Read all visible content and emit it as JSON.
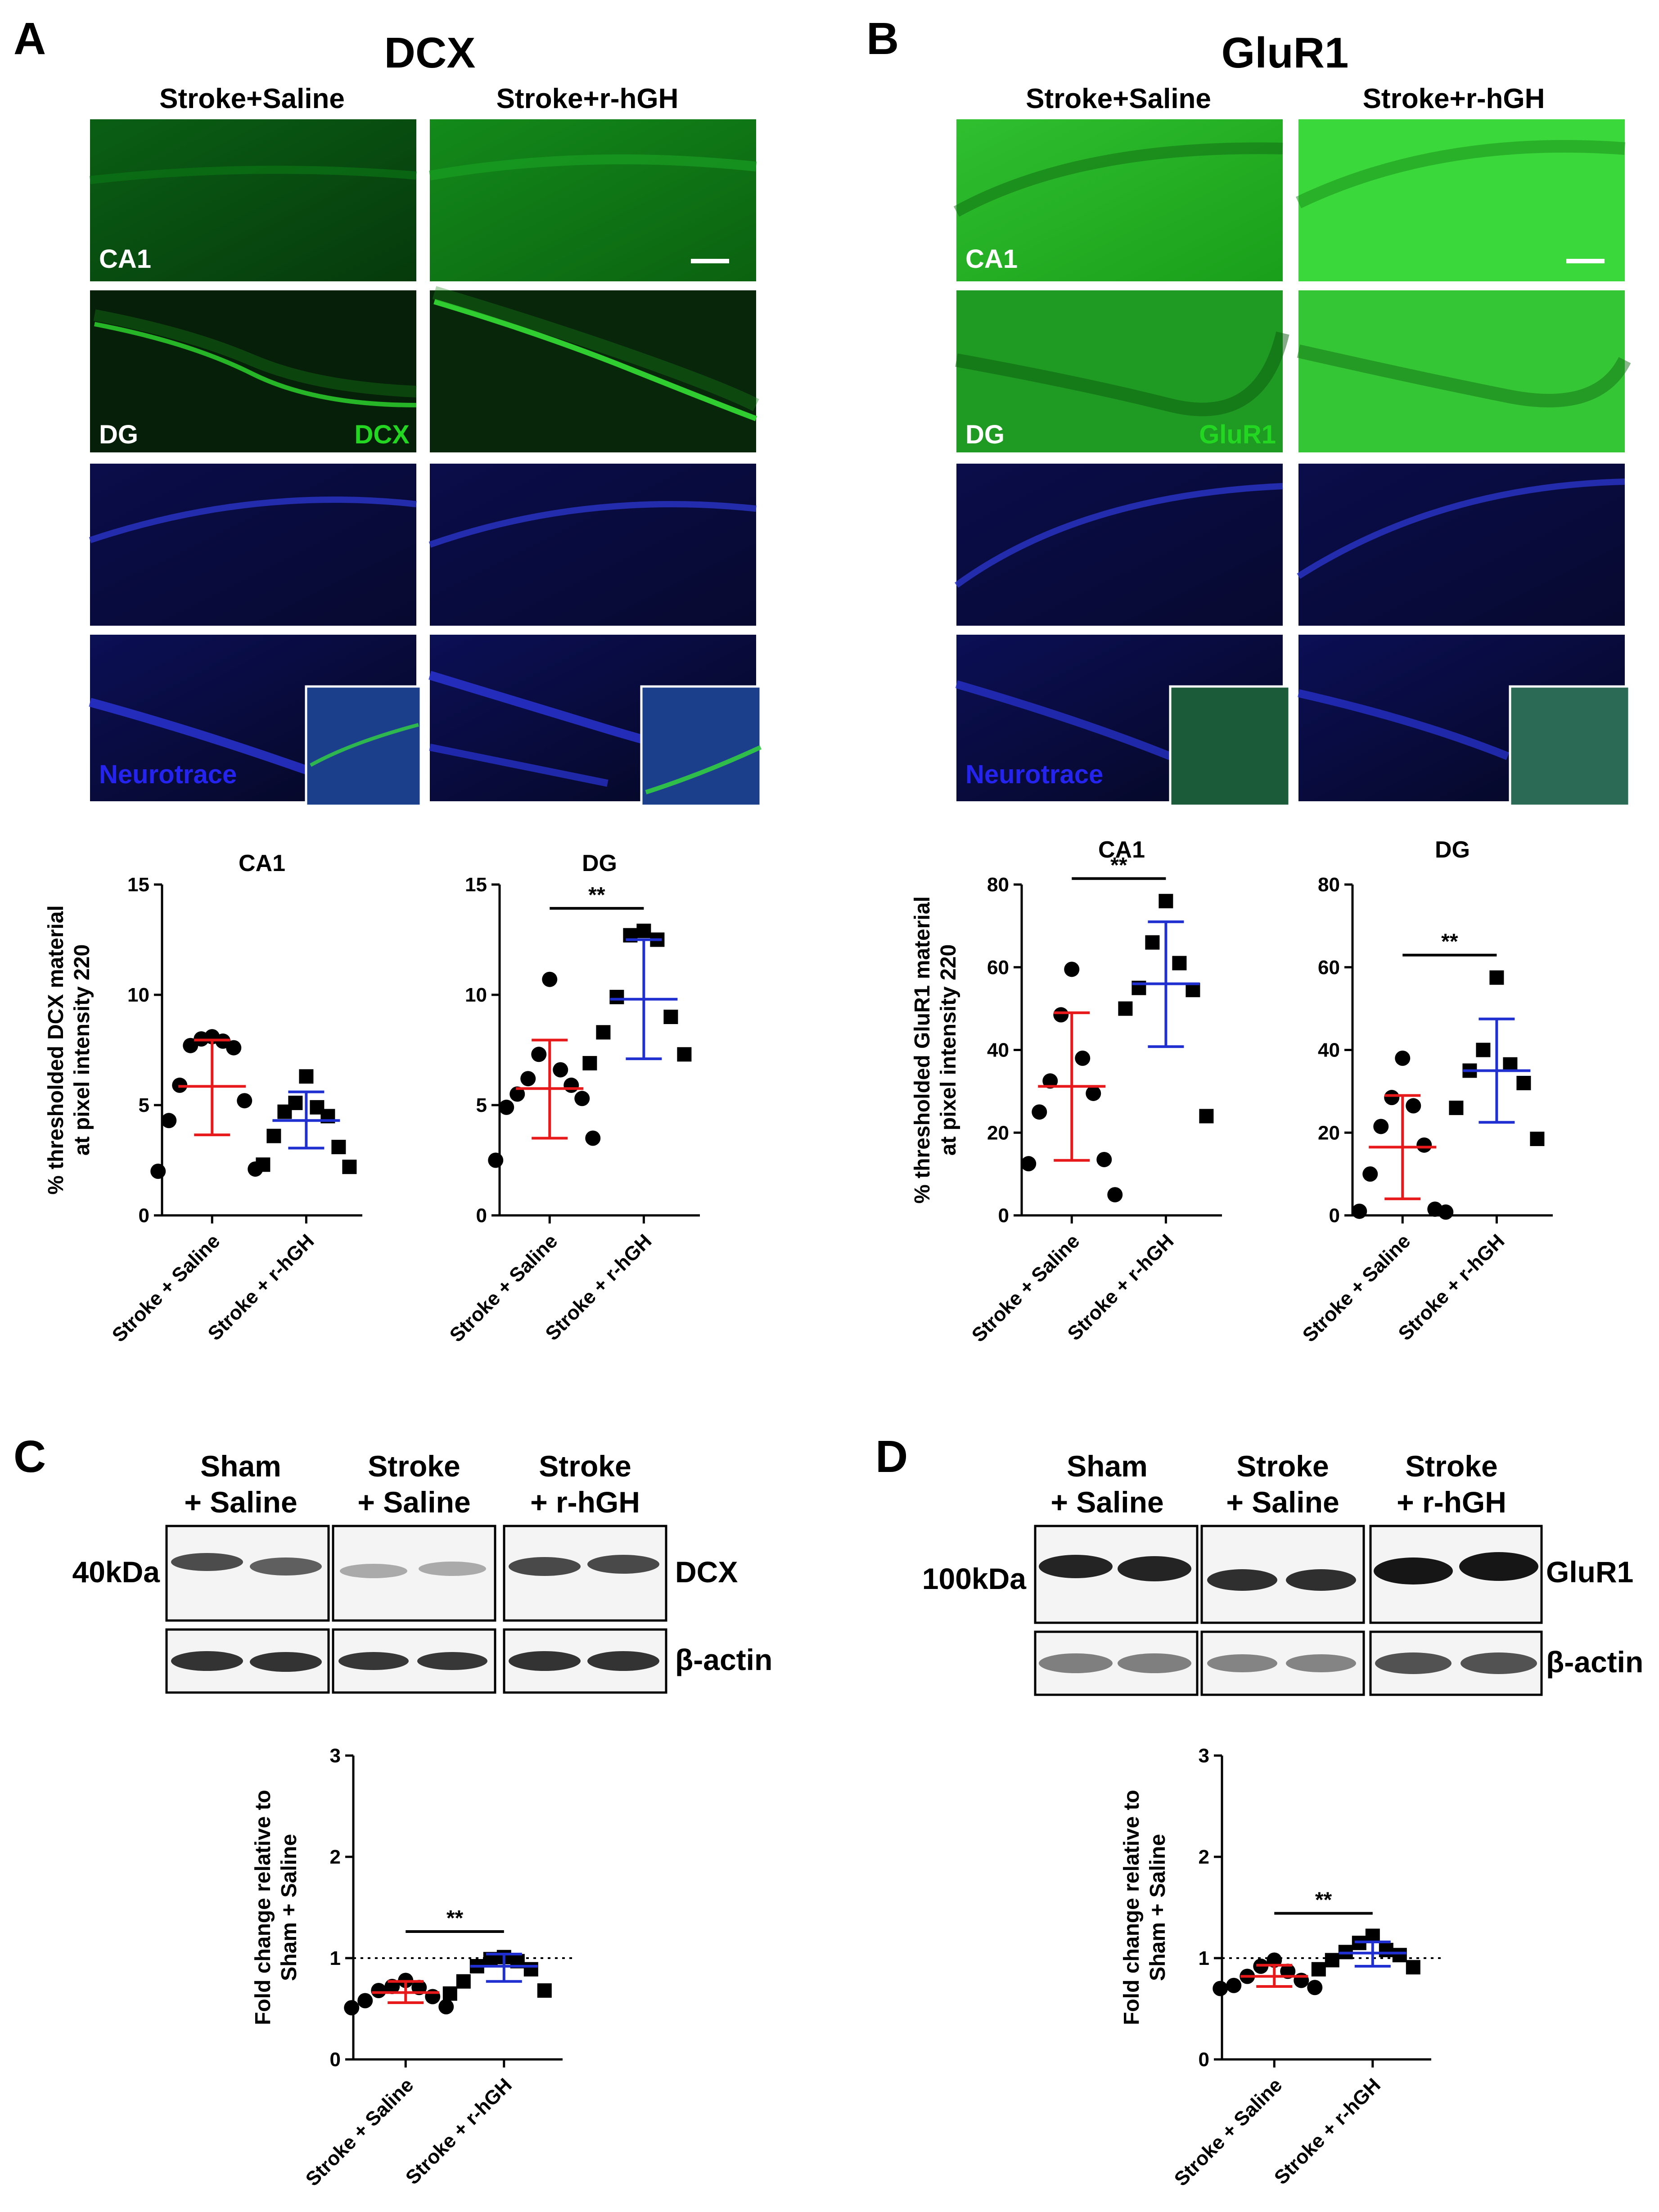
{
  "panels": {
    "A": {
      "letter": "A",
      "title": "DCX",
      "col_labels": [
        "Stroke+Saline",
        "Stroke+r-hGH"
      ],
      "row_labels": {
        "ca1": "CA1",
        "dg": "DG",
        "marker": "DCX",
        "nt": "Neurotrace"
      }
    },
    "B": {
      "letter": "B",
      "title": "GluR1",
      "col_labels": [
        "Stroke+Saline",
        "Stroke+r-hGH"
      ],
      "row_labels": {
        "ca1": "CA1",
        "dg": "DG",
        "marker": "GluR1",
        "nt": "Neurotrace"
      }
    },
    "C": {
      "letter": "C",
      "groups": [
        {
          "line1": "Sham",
          "line2": "+ Saline"
        },
        {
          "line1": "Stroke",
          "line2": "+ Saline"
        },
        {
          "line1": "Stroke",
          "line2": "+ r-hGH"
        }
      ],
      "mw": "40kDa",
      "band1": "DCX",
      "band2": "β-actin"
    },
    "D": {
      "letter": "D",
      "groups": [
        {
          "line1": "Sham",
          "line2": "+ Saline"
        },
        {
          "line1": "Stroke",
          "line2": "+ Saline"
        },
        {
          "line1": "Stroke",
          "line2": "+ r-hGH"
        }
      ],
      "mw": "100kDa",
      "band1": "GluR1",
      "band2": "β-actin"
    }
  },
  "colors": {
    "saline": "#e8191b",
    "rhgh": "#1f2fd0",
    "dcx_green": "#22d622",
    "neurotrace_blue": "#2424ee"
  },
  "chart_data": [
    {
      "id": "A-CA1",
      "type": "scatter",
      "title": "CA1",
      "ylabel": [
        "% thresholded DCX material",
        "at pixel intensity 220"
      ],
      "categories": [
        "Stroke + Saline",
        "Stroke + r-hGH"
      ],
      "ylim": [
        0,
        15
      ],
      "yticks": [
        0,
        5,
        10,
        15
      ],
      "sig": "",
      "series": [
        {
          "marker": "circle",
          "mean": 5.85,
          "sd_low": 3.65,
          "sd_high": 7.95,
          "values": [
            8.1,
            8.0,
            7.9,
            7.7,
            7.6,
            5.9,
            5.2,
            4.3,
            2.1,
            2.0
          ]
        },
        {
          "marker": "square",
          "mean": 4.3,
          "sd_low": 3.05,
          "sd_high": 5.6,
          "values": [
            6.3,
            5.1,
            4.9,
            4.7,
            4.5,
            3.6,
            3.1,
            2.3,
            2.2
          ]
        }
      ]
    },
    {
      "id": "A-DG",
      "type": "scatter",
      "title": "DG",
      "ylabel": [],
      "categories": [
        "Stroke + Saline",
        "Stroke + r-hGH"
      ],
      "ylim": [
        0,
        15
      ],
      "yticks": [
        0,
        5,
        10,
        15
      ],
      "sig": "**",
      "series": [
        {
          "marker": "circle",
          "mean": 5.75,
          "sd_low": 3.5,
          "sd_high": 7.95,
          "values": [
            10.7,
            7.3,
            6.6,
            6.2,
            5.9,
            5.5,
            5.3,
            4.9,
            3.5,
            2.5
          ]
        },
        {
          "marker": "square",
          "mean": 9.8,
          "sd_low": 7.1,
          "sd_high": 12.5,
          "values": [
            12.9,
            12.7,
            12.5,
            9.9,
            9.0,
            8.3,
            7.3,
            6.9
          ]
        }
      ]
    },
    {
      "id": "B-CA1",
      "type": "scatter",
      "title": "CA1",
      "ylabel": [
        "% thresholded GluR1 material",
        "at pixel intensity 220"
      ],
      "categories": [
        "Stroke + Saline",
        "Stroke + r-hGH"
      ],
      "ylim": [
        0,
        80
      ],
      "yticks": [
        0,
        20,
        40,
        60,
        80
      ],
      "sig": "**",
      "series": [
        {
          "marker": "circle",
          "mean": 31.2,
          "sd_low": 13.3,
          "sd_high": 49.0,
          "values": [
            59.5,
            48.5,
            38.0,
            32.5,
            29.5,
            25.0,
            13.5,
            12.5,
            5.0
          ]
        },
        {
          "marker": "square",
          "mean": 56.0,
          "sd_low": 40.8,
          "sd_high": 71.0,
          "values": [
            76.0,
            66.0,
            61.0,
            55.0,
            54.5,
            50.0,
            24.0
          ]
        }
      ]
    },
    {
      "id": "B-DG",
      "type": "scatter",
      "title": "DG",
      "ylabel": [],
      "categories": [
        "Stroke + Saline",
        "Stroke + r-hGH"
      ],
      "ylim": [
        0,
        80
      ],
      "yticks": [
        0,
        20,
        40,
        60,
        80
      ],
      "sig": "**",
      "series": [
        {
          "marker": "circle",
          "mean": 16.5,
          "sd_low": 4.0,
          "sd_high": 29.0,
          "values": [
            38.0,
            28.5,
            26.5,
            21.5,
            17.0,
            10.0,
            1.5,
            1.0,
            0.8
          ]
        },
        {
          "marker": "square",
          "mean": 35.0,
          "sd_low": 22.5,
          "sd_high": 47.5,
          "values": [
            57.5,
            40.0,
            36.5,
            35.0,
            32.0,
            26.0,
            18.5
          ]
        }
      ]
    },
    {
      "id": "C",
      "type": "scatter",
      "title": "",
      "ylabel": [
        "Fold change relative to",
        "Sham + Saline"
      ],
      "categories": [
        "Stroke + Saline",
        "Stroke + r-hGH"
      ],
      "ylim": [
        0,
        3
      ],
      "yticks": [
        0,
        1,
        2,
        3
      ],
      "sig": "**",
      "refline": 1,
      "series": [
        {
          "marker": "circle",
          "mean": 0.66,
          "sd_low": 0.56,
          "sd_high": 0.77,
          "values": [
            0.78,
            0.72,
            0.71,
            0.68,
            0.62,
            0.58,
            0.52,
            0.51
          ]
        },
        {
          "marker": "square",
          "mean": 0.92,
          "sd_low": 0.77,
          "sd_high": 1.04,
          "values": [
            1.01,
            0.99,
            0.97,
            0.92,
            0.89,
            0.77,
            0.68,
            0.65
          ]
        }
      ]
    },
    {
      "id": "D",
      "type": "scatter",
      "title": "",
      "ylabel": [
        "Fold change relative to",
        "Sham + Saline"
      ],
      "categories": [
        "Stroke + Saline",
        "Stroke + r-hGH"
      ],
      "ylim": [
        0,
        3
      ],
      "yticks": [
        0,
        1,
        2,
        3
      ],
      "sig": "**",
      "refline": 1,
      "series": [
        {
          "marker": "circle",
          "mean": 0.82,
          "sd_low": 0.72,
          "sd_high": 0.93,
          "values": [
            0.98,
            0.92,
            0.87,
            0.82,
            0.78,
            0.73,
            0.71,
            0.7
          ]
        },
        {
          "marker": "square",
          "mean": 1.05,
          "sd_low": 0.92,
          "sd_high": 1.16,
          "values": [
            1.22,
            1.15,
            1.08,
            1.06,
            1.03,
            0.98,
            0.91,
            0.89
          ]
        }
      ]
    }
  ]
}
